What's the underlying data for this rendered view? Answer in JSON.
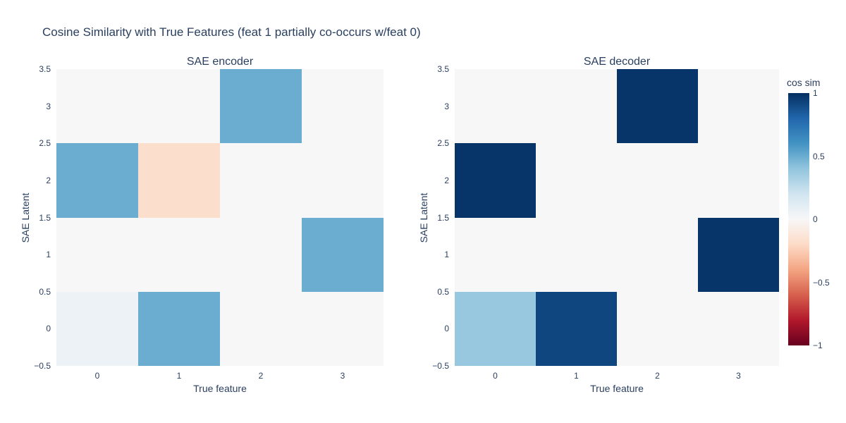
{
  "colors": {
    "text": "#2a3f5f",
    "background": "#ffffff",
    "zero_cell": "#f7f7f7",
    "max_blue": "#053061",
    "min_red": "#67001f"
  },
  "chart_data": {
    "type": "heatmap",
    "title": "Cosine Similarity with True Features (feat 1 partially co-occurs w/feat 0)",
    "zmin": -1,
    "zmax": 1,
    "x_tick_labels": [
      "0",
      "1",
      "2",
      "3"
    ],
    "y_tick_labels": [
      "3.5",
      "3",
      "2.5",
      "2",
      "1.5",
      "1",
      "0.5",
      "0",
      "−0.5"
    ],
    "row_order": "rows listed top-to-bottom: y=3, y=2, y=1, y=0; columns x=0..3",
    "subplots": [
      {
        "title": "SAE encoder",
        "xlabel": "True feature",
        "ylabel": "SAE Latent",
        "x": [
          0,
          1,
          2,
          3
        ],
        "y": [
          0,
          1,
          2,
          3
        ],
        "matrix": [
          [
            0,
            0,
            0.5,
            0
          ],
          [
            0.5,
            -0.18,
            0,
            0
          ],
          [
            0,
            0,
            0,
            0.5
          ],
          [
            0.06,
            0.5,
            0,
            0
          ]
        ]
      },
      {
        "title": "SAE decoder",
        "xlabel": "True feature",
        "ylabel": "SAE Latent",
        "x": [
          0,
          1,
          2,
          3
        ],
        "y": [
          0,
          1,
          2,
          3
        ],
        "matrix": [
          [
            0,
            0,
            0.98,
            0
          ],
          [
            0.98,
            0,
            0,
            0
          ],
          [
            0,
            0,
            0,
            0.98
          ],
          [
            0.38,
            0.92,
            0,
            0
          ]
        ]
      }
    ],
    "colorbar": {
      "title": "cos sim",
      "tick_labels": [
        "1",
        "0.5",
        "0",
        "−0.5",
        "−1"
      ],
      "tick_values": [
        1,
        0.5,
        0,
        -0.5,
        -1
      ]
    },
    "colorscale": [
      [
        0,
        "#67001f"
      ],
      [
        0.1,
        "#b2182b"
      ],
      [
        0.2,
        "#d6604d"
      ],
      [
        0.3,
        "#f4a582"
      ],
      [
        0.4,
        "#fddbc7"
      ],
      [
        0.5,
        "#f7f7f7"
      ],
      [
        0.6,
        "#d1e5f0"
      ],
      [
        0.7,
        "#92c5de"
      ],
      [
        0.8,
        "#4393c3"
      ],
      [
        0.9,
        "#2166ac"
      ],
      [
        1,
        "#053061"
      ]
    ],
    "legend_position": "right-colorbar",
    "grid": false
  }
}
